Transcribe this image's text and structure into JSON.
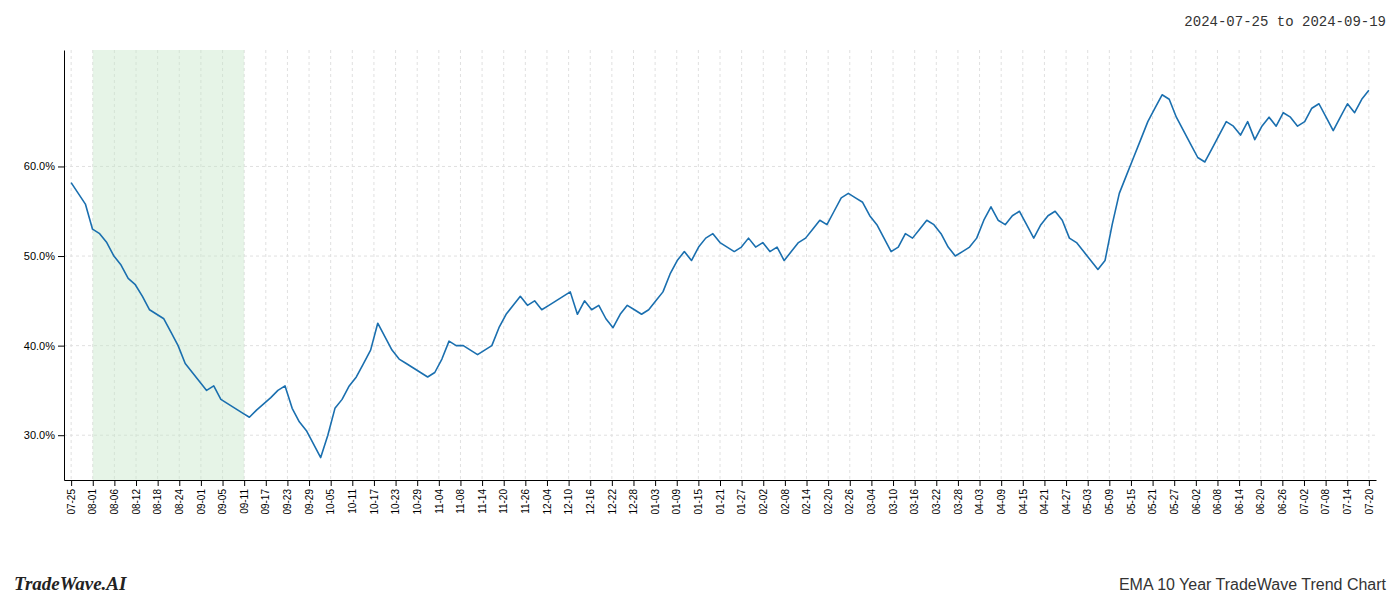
{
  "chart_data": {
    "type": "line",
    "title": "2024-07-25 to 2024-09-19",
    "subtitle": "EMA 10 Year TradeWave Trend Chart",
    "annotations": [
      "TradeWave.AI"
    ],
    "color": "#1a6faf",
    "grid": true,
    "xlim": [
      -1,
      183
    ],
    "ylim": [
      25,
      73
    ],
    "yticks": [
      {
        "value": 30,
        "label": "30.0%"
      },
      {
        "value": 40,
        "label": "40.0%"
      },
      {
        "value": 50,
        "label": "50.0%"
      },
      {
        "value": 60,
        "label": "60.0%"
      }
    ],
    "xticks": [
      {
        "value": 0,
        "label": "07-25"
      },
      {
        "value": 3.0333333333333,
        "label": "08-01"
      },
      {
        "value": 6.0666666666667,
        "label": "08-06"
      },
      {
        "value": 9.1,
        "label": "08-12"
      },
      {
        "value": 12.133333333333,
        "label": "08-18"
      },
      {
        "value": 15.166666666667,
        "label": "08-24"
      },
      {
        "value": 18.2,
        "label": "09-01"
      },
      {
        "value": 21.233333333333,
        "label": "09-05"
      },
      {
        "value": 24.266666666667,
        "label": "09-11"
      },
      {
        "value": 27.3,
        "label": "09-17"
      },
      {
        "value": 30.333333333333,
        "label": "09-23"
      },
      {
        "value": 33.366666666667,
        "label": "09-29"
      },
      {
        "value": 36.4,
        "label": "10-05"
      },
      {
        "value": 39.433333333333,
        "label": "10-11"
      },
      {
        "value": 42.466666666667,
        "label": "10-17"
      },
      {
        "value": 45.5,
        "label": "10-23"
      },
      {
        "value": 48.533333333333,
        "label": "10-29"
      },
      {
        "value": 51.566666666667,
        "label": "11-04"
      },
      {
        "value": 54.6,
        "label": "11-08"
      },
      {
        "value": 57.633333333333,
        "label": "11-14"
      },
      {
        "value": 60.666666666667,
        "label": "11-20"
      },
      {
        "value": 63.7,
        "label": "11-26"
      },
      {
        "value": 66.733333333333,
        "label": "12-04"
      },
      {
        "value": 69.766666666667,
        "label": "12-10"
      },
      {
        "value": 72.8,
        "label": "12-16"
      },
      {
        "value": 75.833333333333,
        "label": "12-22"
      },
      {
        "value": 78.866666666667,
        "label": "12-28"
      },
      {
        "value": 81.9,
        "label": "01-03"
      },
      {
        "value": 84.933333333333,
        "label": "01-09"
      },
      {
        "value": 87.966666666667,
        "label": "01-15"
      },
      {
        "value": 91,
        "label": "01-21"
      },
      {
        "value": 94.033333333333,
        "label": "01-27"
      },
      {
        "value": 97.066666666667,
        "label": "02-02"
      },
      {
        "value": 100.1,
        "label": "02-08"
      },
      {
        "value": 103.13333333333,
        "label": "02-14"
      },
      {
        "value": 106.16666666667,
        "label": "02-20"
      },
      {
        "value": 109.2,
        "label": "02-26"
      },
      {
        "value": 112.23333333333,
        "label": "03-04"
      },
      {
        "value": 115.26666666667,
        "label": "03-10"
      },
      {
        "value": 118.3,
        "label": "03-16"
      },
      {
        "value": 121.33333333333,
        "label": "03-22"
      },
      {
        "value": 124.36666666667,
        "label": "03-28"
      },
      {
        "value": 127.4,
        "label": "04-03"
      },
      {
        "value": 130.43333333333,
        "label": "04-09"
      },
      {
        "value": 133.46666666667,
        "label": "04-15"
      },
      {
        "value": 136.5,
        "label": "04-21"
      },
      {
        "value": 139.53333333333,
        "label": "04-27"
      },
      {
        "value": 142.56666666667,
        "label": "05-03"
      },
      {
        "value": 145.6,
        "label": "05-09"
      },
      {
        "value": 148.63333333333,
        "label": "05-15"
      },
      {
        "value": 151.66666666667,
        "label": "05-21"
      },
      {
        "value": 154.7,
        "label": "05-27"
      },
      {
        "value": 157.73333333333,
        "label": "06-02"
      },
      {
        "value": 160.76666666667,
        "label": "06-08"
      },
      {
        "value": 163.8,
        "label": "06-14"
      },
      {
        "value": 166.83333333333,
        "label": "06-20"
      },
      {
        "value": 169.86666666667,
        "label": "06-26"
      },
      {
        "value": 172.9,
        "label": "07-02"
      },
      {
        "value": 175.93333333333,
        "label": "07-08"
      },
      {
        "value": 178.96666666667,
        "label": "07-14"
      },
      {
        "value": 182,
        "label": "07-20"
      }
    ],
    "shaded_span": {
      "from": 3.0333333333333,
      "to": 24.266666666667,
      "color": "#c8e6c9"
    },
    "x": [
      0,
      1,
      2,
      3,
      4,
      5,
      6,
      7,
      8,
      9,
      10,
      11,
      12,
      13,
      14,
      15,
      16,
      17,
      18,
      19,
      20,
      21,
      22,
      23,
      24,
      25,
      26,
      27,
      28,
      29,
      30,
      31,
      32,
      33,
      34,
      35,
      36,
      37,
      38,
      39,
      40,
      41,
      42,
      43,
      44,
      45,
      46,
      47,
      48,
      49,
      50,
      51,
      52,
      53,
      54,
      55,
      56,
      57,
      58,
      59,
      60,
      61,
      62,
      63,
      64,
      65,
      66,
      67,
      68,
      69,
      70,
      71,
      72,
      73,
      74,
      75,
      76,
      77,
      78,
      79,
      80,
      81,
      82,
      83,
      84,
      85,
      86,
      87,
      88,
      89,
      90,
      91,
      92,
      93,
      94,
      95,
      96,
      97,
      98,
      99,
      100,
      101,
      102,
      103,
      104,
      105,
      106,
      107,
      108,
      109,
      110,
      111,
      112,
      113,
      114,
      115,
      116,
      117,
      118,
      119,
      120,
      121,
      122,
      123,
      124,
      125,
      126,
      127,
      128,
      129,
      130,
      131,
      132,
      133,
      134,
      135,
      136,
      137,
      138,
      139,
      140,
      141,
      142,
      143,
      144,
      145,
      146,
      147,
      148,
      149,
      150,
      151,
      152,
      153,
      154,
      155,
      156,
      157,
      158,
      159,
      160,
      161,
      162,
      163,
      164,
      165,
      166,
      167,
      168,
      169,
      170,
      171,
      172,
      173,
      174,
      175,
      176,
      177,
      178,
      179,
      180,
      181,
      182
    ],
    "values": [
      58.2,
      57.0,
      55.8,
      53.0,
      52.5,
      51.5,
      50.0,
      49.0,
      47.5,
      46.8,
      45.5,
      44.0,
      43.5,
      43.0,
      41.5,
      40.0,
      38.0,
      37.0,
      36.0,
      35.0,
      35.5,
      34.0,
      33.5,
      33.0,
      32.5,
      32.0,
      32.8,
      33.5,
      34.2,
      35.0,
      35.5,
      33.0,
      31.5,
      30.5,
      29.0,
      27.5,
      30.0,
      33.0,
      34.0,
      35.5,
      36.5,
      38.0,
      39.5,
      42.5,
      41.0,
      39.5,
      38.5,
      38.0,
      37.5,
      37.0,
      36.5,
      37.0,
      38.5,
      40.5,
      40.0,
      40.0,
      39.5,
      39.0,
      39.5,
      40.0,
      42.0,
      43.5,
      44.5,
      45.5,
      44.5,
      45.0,
      44.0,
      44.5,
      45.0,
      45.5,
      46.0,
      43.5,
      45.0,
      44.0,
      44.5,
      43.0,
      42.0,
      43.5,
      44.5,
      44.0,
      43.5,
      44.0,
      45.0,
      46.0,
      48.0,
      49.5,
      50.5,
      49.5,
      51.0,
      52.0,
      52.5,
      51.5,
      51.0,
      50.5,
      51.0,
      52.0,
      51.0,
      51.5,
      50.5,
      51.0,
      49.5,
      50.5,
      51.5,
      52.0,
      53.0,
      54.0,
      53.5,
      55.0,
      56.5,
      57.0,
      56.5,
      56.0,
      54.5,
      53.5,
      52.0,
      50.5,
      51.0,
      52.5,
      52.0,
      53.0,
      54.0,
      53.5,
      52.5,
      51.0,
      50.0,
      50.5,
      51.0,
      52.0,
      54.0,
      55.5,
      54.0,
      53.5,
      54.5,
      55.0,
      53.5,
      52.0,
      53.5,
      54.5,
      55.0,
      54.0,
      52.0,
      51.5,
      50.5,
      49.5,
      48.5,
      49.5,
      53.5,
      57.0,
      59.0,
      61.0,
      63.0,
      65.0,
      66.5,
      68.0,
      67.5,
      65.5,
      64.0,
      62.5,
      61.0,
      60.5,
      62.0,
      63.5,
      65.0,
      64.5,
      63.5,
      65.0,
      63.0,
      64.5,
      65.5,
      64.5,
      66.0,
      65.5,
      64.5,
      65.0,
      66.5,
      67.0,
      65.5,
      64.0,
      65.5,
      67.0,
      66.0,
      67.5,
      68.5
    ]
  }
}
